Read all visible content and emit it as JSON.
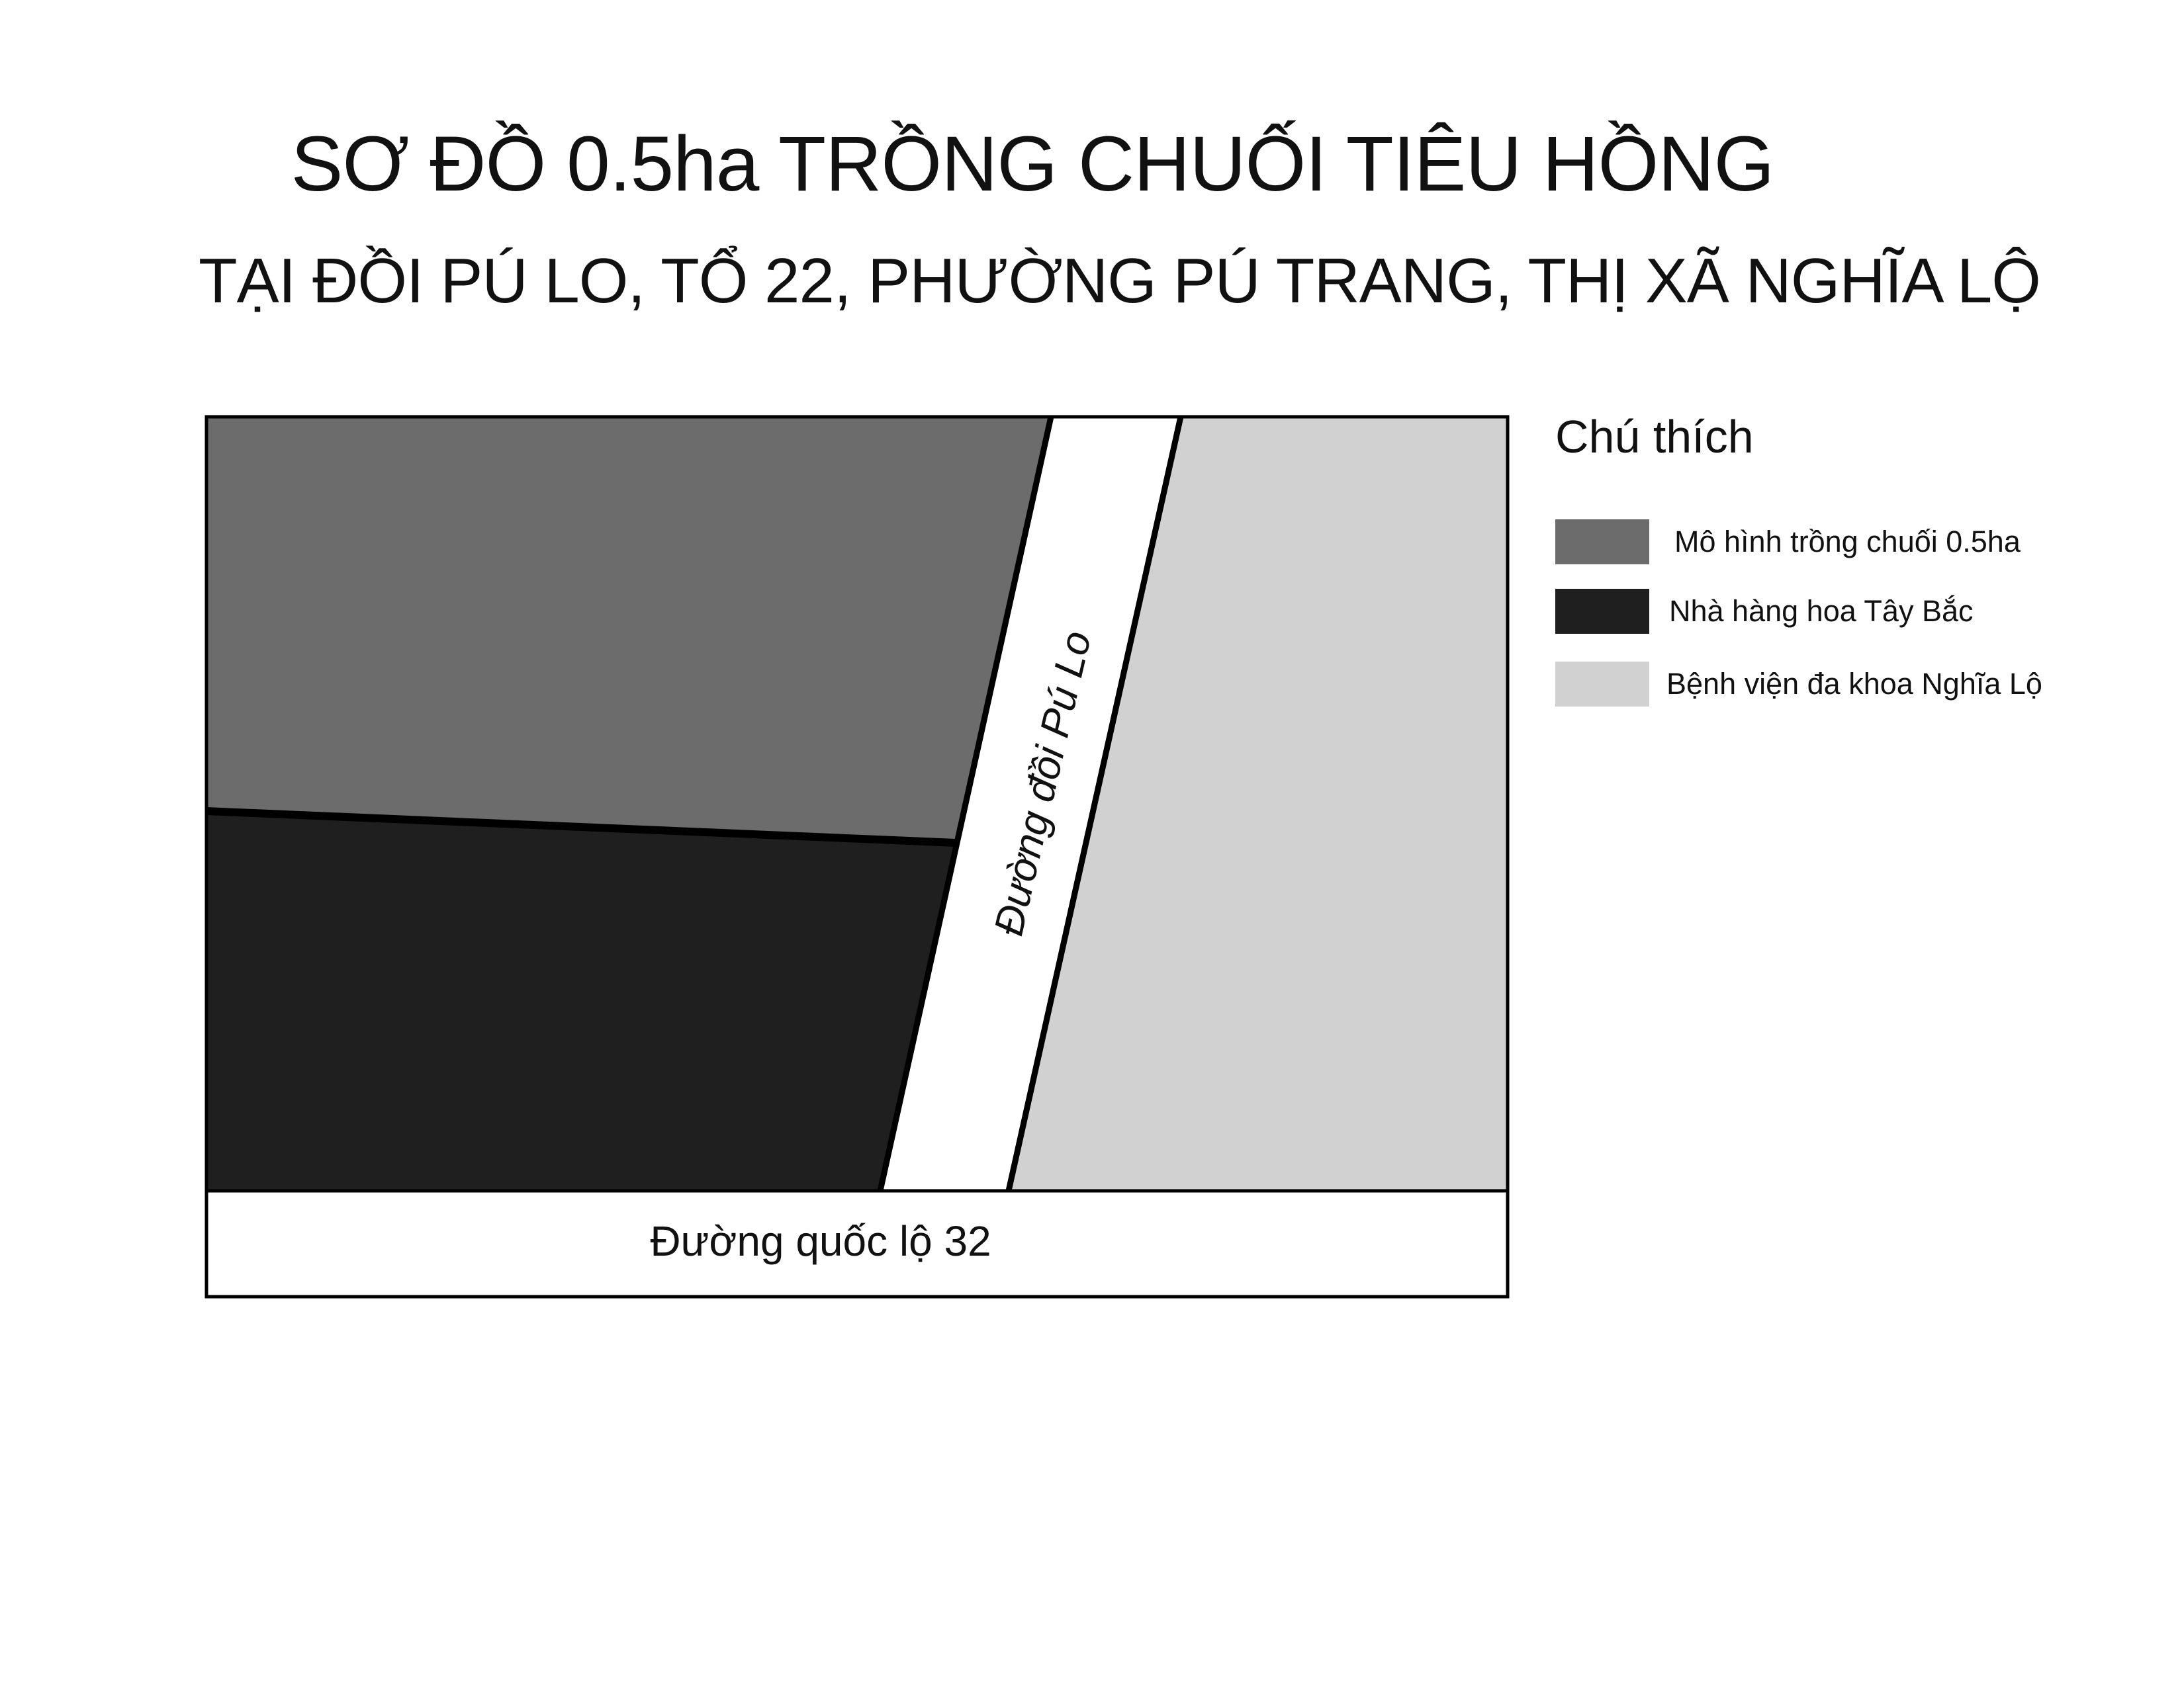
{
  "title": "SƠ ĐỒ 0.5ha TRỒNG CHUỐI TIÊU HỒNG",
  "subtitle": "TẠI ĐỒI PÚ LO, TỔ 22, PHƯỜNG PÚ TRANG, THỊ XÃ NGHĨA LỘ",
  "map": {
    "road_vertical_label": "Đường đồi Pú Lo",
    "road_horizontal_label": "Đường quốc lộ 32",
    "colors": {
      "banana_model": "#6d6c6d",
      "restaurant": "#1f1f1f",
      "hospital": "#d1d1d1",
      "road": "#ffffff",
      "outline": "#000000"
    }
  },
  "legend": {
    "title": "Chú thích",
    "items": [
      {
        "label": "Mô hình trồng chuối 0.5ha",
        "color": "#6d6c6d"
      },
      {
        "label": "Nhà hàng hoa Tây Bắc",
        "color": "#1f1f1f"
      },
      {
        "label": "Bệnh viện đa khoa Nghĩa Lộ",
        "color": "#d1d1d1"
      }
    ]
  }
}
